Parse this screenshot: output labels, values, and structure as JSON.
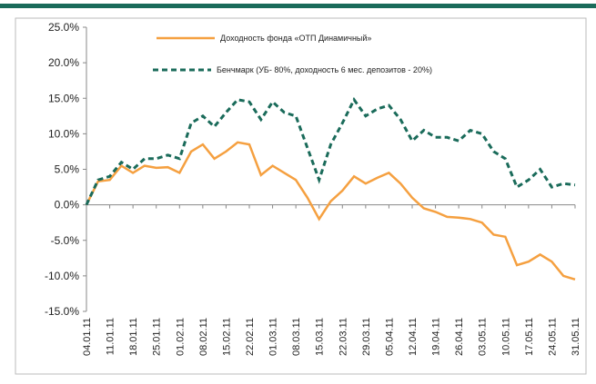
{
  "chart_data": {
    "type": "line",
    "categories": [
      "04.01.11",
      null,
      "11.01.11",
      null,
      "18.01.11",
      null,
      "25.01.11",
      null,
      "01.02.11",
      null,
      "08.02.11",
      null,
      "15.02.11",
      null,
      "22.02.11",
      null,
      "01.03.11",
      null,
      "08.03.11",
      null,
      "15.03.11",
      null,
      "22.03.11",
      null,
      "29.03.11",
      null,
      "05.04.11",
      null,
      "12.04.11",
      null,
      "19.04.11",
      null,
      "26.04.11",
      null,
      "03.05.11",
      null,
      "10.05.11",
      null,
      "17.05.11",
      null,
      "24.05.11",
      null,
      "31.05.11"
    ],
    "series": [
      {
        "name": "Доходность фонда «ОТП Динамичный»",
        "color": "#f5a040",
        "dash": false,
        "values": [
          0,
          3.3,
          3.5,
          5.5,
          4.5,
          5.5,
          5.2,
          5.3,
          4.5,
          7.5,
          8.5,
          6.5,
          7.5,
          8.8,
          8.5,
          4.2,
          5.5,
          4.5,
          3.5,
          1.0,
          -2.0,
          0.5,
          2.0,
          4.0,
          3.0,
          3.8,
          4.5,
          3.0,
          1.0,
          -0.5,
          -1.0,
          -1.7,
          -1.8,
          -2.0,
          -2.5,
          -4.2,
          -4.5,
          -8.5,
          -8.0,
          -7.0,
          -8.0,
          -10.0,
          -10.5
        ]
      },
      {
        "name": "Бенчмарк (УБ- 80%, доходность 6 мес. депозитов  - 20%)",
        "color": "#1a6b5a",
        "dash": true,
        "values": [
          0,
          3.5,
          4.0,
          6.0,
          5.0,
          6.5,
          6.5,
          7.0,
          6.5,
          11.5,
          12.5,
          11.0,
          13.0,
          14.8,
          14.5,
          12.0,
          14.5,
          13.0,
          12.5,
          8.0,
          3.5,
          8.5,
          11.5,
          14.8,
          12.5,
          13.5,
          14.0,
          12.0,
          9.0,
          10.5,
          9.5,
          9.5,
          9.0,
          10.5,
          10.0,
          7.5,
          6.5,
          2.5,
          3.5,
          5.0,
          2.5,
          3.0,
          2.8
        ]
      }
    ],
    "ylim": [
      -15,
      25
    ],
    "yticks": [
      {
        "value": -15,
        "label": "-15.0%"
      },
      {
        "value": -10,
        "label": "-10.0%"
      },
      {
        "value": -5,
        "label": "-5.0%"
      },
      {
        "value": 0,
        "label": "0.0%"
      },
      {
        "value": 5,
        "label": "5.0%"
      },
      {
        "value": 10,
        "label": "10.0%"
      },
      {
        "value": 15,
        "label": "15.0%"
      },
      {
        "value": 20,
        "label": "20.0%"
      },
      {
        "value": 25,
        "label": "25.0%"
      }
    ]
  }
}
